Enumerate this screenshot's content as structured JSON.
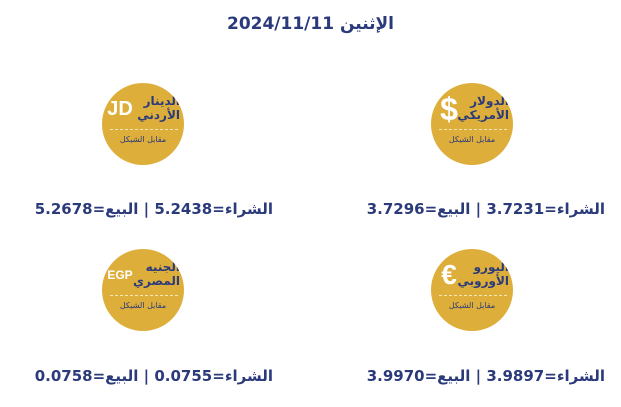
{
  "date": "الإثنين 2024/11/11",
  "colors": {
    "badge": "#deae3b",
    "text": "#2b3a7a"
  },
  "against_label": "مقابل الشيكل",
  "currencies": [
    {
      "symbol": "$",
      "name_line1": "الدولار",
      "name_line2": "الأمريكي",
      "rate": "الشراء=3.7231 | البيع=3.7296"
    },
    {
      "symbol": "JD",
      "name_line1": "الدينار",
      "name_line2": "الأردني",
      "rate": "الشراء=5.2438 | البيع=5.2678"
    },
    {
      "symbol": "€",
      "name_line1": "اليورو",
      "name_line2": "الأوروبي",
      "rate": "الشراء=3.9897 | البيع=3.9970"
    },
    {
      "symbol": "EGP",
      "name_line1": "الجنيه",
      "name_line2": "المصري",
      "rate": "الشراء=0.0755 | البيع=0.0758"
    }
  ]
}
